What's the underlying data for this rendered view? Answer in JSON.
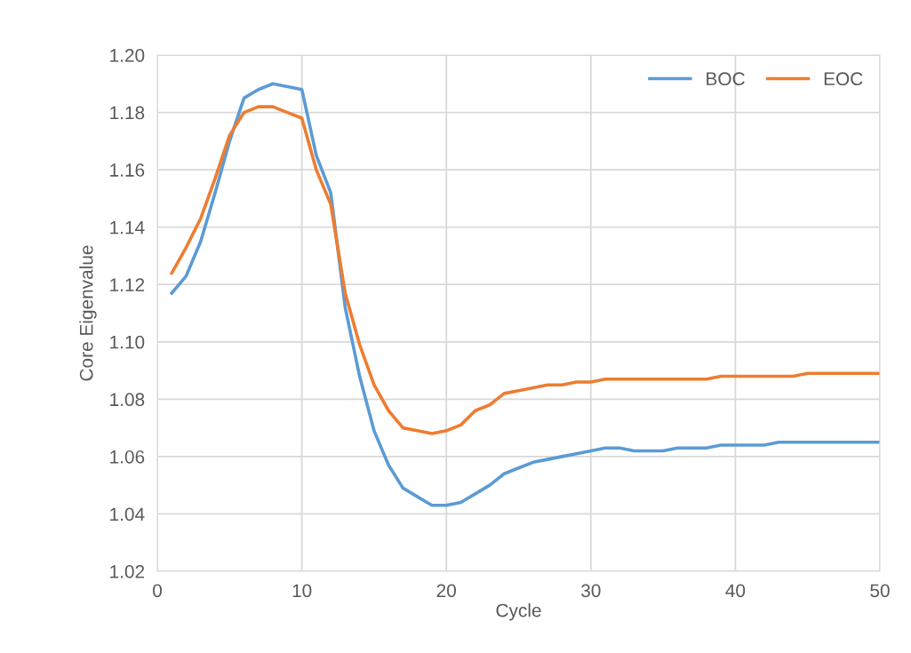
{
  "chart_data": {
    "type": "line",
    "xlabel": "Cycle",
    "ylabel": "Core Eigenvalue",
    "x": [
      1,
      2,
      3,
      4,
      5,
      6,
      7,
      8,
      9,
      10,
      11,
      12,
      13,
      14,
      15,
      16,
      17,
      18,
      19,
      20,
      21,
      22,
      23,
      24,
      25,
      26,
      27,
      28,
      29,
      30,
      31,
      32,
      33,
      34,
      35,
      36,
      37,
      38,
      39,
      40,
      41,
      42,
      43,
      44,
      45,
      46,
      47,
      48,
      49,
      50
    ],
    "series": [
      {
        "name": "BOC",
        "color": "#5b9bd5",
        "values": [
          1.117,
          1.123,
          1.135,
          1.152,
          1.17,
          1.185,
          1.188,
          1.19,
          1.189,
          1.188,
          1.165,
          1.152,
          1.112,
          1.088,
          1.069,
          1.057,
          1.049,
          1.046,
          1.043,
          1.043,
          1.044,
          1.047,
          1.05,
          1.054,
          1.056,
          1.058,
          1.059,
          1.06,
          1.061,
          1.062,
          1.063,
          1.063,
          1.062,
          1.062,
          1.062,
          1.063,
          1.063,
          1.063,
          1.064,
          1.064,
          1.064,
          1.064,
          1.065,
          1.065,
          1.065,
          1.065,
          1.065,
          1.065,
          1.065,
          1.065
        ]
      },
      {
        "name": "EOC",
        "color": "#ed7d31",
        "values": [
          1.124,
          1.133,
          1.143,
          1.157,
          1.172,
          1.18,
          1.182,
          1.182,
          1.18,
          1.178,
          1.16,
          1.148,
          1.117,
          1.099,
          1.085,
          1.076,
          1.07,
          1.069,
          1.068,
          1.069,
          1.071,
          1.076,
          1.078,
          1.082,
          1.083,
          1.084,
          1.085,
          1.085,
          1.086,
          1.086,
          1.087,
          1.087,
          1.087,
          1.087,
          1.087,
          1.087,
          1.087,
          1.087,
          1.088,
          1.088,
          1.088,
          1.088,
          1.088,
          1.088,
          1.089,
          1.089,
          1.089,
          1.089,
          1.089,
          1.089
        ]
      }
    ],
    "xlim": [
      0,
      50
    ],
    "xticks": [
      0,
      10,
      20,
      30,
      40,
      50
    ],
    "ylim": [
      1.02,
      1.2
    ],
    "yticks": [
      {
        "value": 1.02,
        "label": "1.02"
      },
      {
        "value": 1.04,
        "label": "1.04"
      },
      {
        "value": 1.06,
        "label": "1.06"
      },
      {
        "value": 1.08,
        "label": "1.08"
      },
      {
        "value": 1.1,
        "label": "1.10"
      },
      {
        "value": 1.12,
        "label": "1.12"
      },
      {
        "value": 1.14,
        "label": "1.14"
      },
      {
        "value": 1.16,
        "label": "1.16"
      },
      {
        "value": 1.18,
        "label": "1.18"
      },
      {
        "value": 1.2,
        "label": "1.20"
      }
    ],
    "grid": true,
    "legend": "top right",
    "marker": "none",
    "line_style": "solid"
  }
}
